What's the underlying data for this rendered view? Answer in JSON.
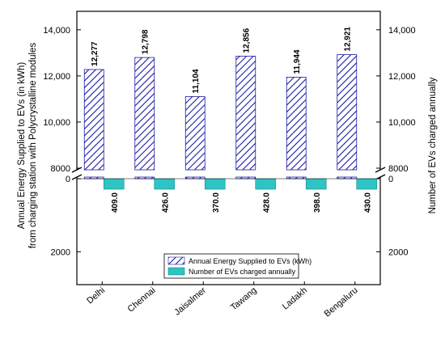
{
  "chart_data": {
    "type": "bar",
    "categories": [
      "Delhi",
      "Chennai",
      "Jaisalmer",
      "Tawang",
      "Ladakh",
      "Bengaluru"
    ],
    "series": [
      {
        "name": "Annual Energy Supplied to EVs (kWh)",
        "values": [
          12277,
          12798,
          11104,
          12856,
          11944,
          12921
        ],
        "labels": [
          "12,277",
          "12,798",
          "11,104",
          "12,856",
          "11,944",
          "12,921"
        ],
        "pattern": "diagonal-hatch",
        "color": "#1a1aa6"
      },
      {
        "name": "Number of EVs charged annually",
        "values": [
          409.0,
          426.0,
          370.0,
          428.0,
          398.0,
          430.0
        ],
        "labels": [
          "409.0",
          "426.0",
          "370.0",
          "428.0",
          "398.0",
          "430.0"
        ],
        "color": "#2ec4c4"
      }
    ],
    "y_left": {
      "label": "Annual Energy Supplied to EVs (in kWh)\nfrom charging station with Polycrystalline modules",
      "upper_range": [
        8000,
        14800
      ],
      "upper_ticks": [
        "8000",
        "10,000",
        "12,000",
        "14,000"
      ],
      "upper_tick_values": [
        8000,
        10000,
        12000,
        14000
      ],
      "lower_range": [
        -2900,
        0
      ],
      "lower_ticks": [
        "0",
        "2000"
      ],
      "lower_tick_values": [
        0,
        -2000
      ],
      "broken": true
    },
    "y_right": {
      "label": "Number of EVs charged annually",
      "upper_ticks": [
        "8000",
        "10,000",
        "12,000",
        "14,000"
      ],
      "upper_tick_values": [
        8000,
        10000,
        12000,
        14000
      ],
      "lower_ticks": [
        "0",
        "2000"
      ],
      "lower_tick_values": [
        0,
        -2000
      ]
    },
    "legend_placement": "bottom-center",
    "grid": false
  }
}
